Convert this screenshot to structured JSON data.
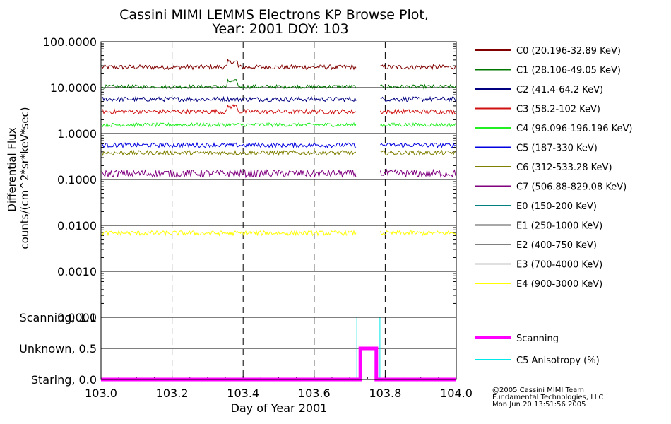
{
  "title_line1": "Cassini MIMI LEMMS Electrons KP Browse Plot,",
  "title_line2": "Year: 2001 DOY: 103",
  "ylabel_line1": "Differential Flux",
  "ylabel_line2": "counts/(cm^2*sr*keV*sec)",
  "xlabel": "Day of Year 2001",
  "credits": [
    "@2005 Cassini MIMI Team",
    "Fundamental Technologies, LLC",
    "Mon Jun 20 13:51:56 2005"
  ],
  "chart_data": [
    {
      "type": "line",
      "title": "Cassini MIMI LEMMS Electrons KP Browse Plot, Year: 2001 DOY: 103",
      "xlabel": "Day of Year 2001",
      "ylabel": "Differential Flux counts/(cm^2*sr*keV*sec)",
      "yscale": "log",
      "xlim": [
        103.0,
        104.0
      ],
      "ylim": [
        0.0001,
        100.0
      ],
      "y_ticks": [
        "100.0000",
        "10.0000",
        "1.0000",
        "0.1000",
        "0.0100",
        "0.0010",
        "0.0001"
      ],
      "x_vertical_dashed_lines": [
        103.2,
        103.4,
        103.6,
        103.8
      ],
      "data_gap": [
        103.72,
        103.785
      ],
      "legend_position": "right",
      "series": [
        {
          "name": "C0 (20.196-32.89 KeV)",
          "color": "#800000",
          "level": 28.0,
          "noise": 0.05,
          "feature": "bump near 103.36-103.38"
        },
        {
          "name": "C1 (28.106-49.05 KeV)",
          "color": "#007800",
          "level": 10.5,
          "noise": 0.04,
          "feature": "bump near 103.36-103.38"
        },
        {
          "name": "C2 (41.4-64.2 KeV)",
          "color": "#000080",
          "level": 5.6,
          "noise": 0.05,
          "feature": ""
        },
        {
          "name": "C3 (58.2-102 KeV)",
          "color": "#d01010",
          "level": 3.0,
          "noise": 0.05,
          "feature": "bump near 103.36-103.38"
        },
        {
          "name": "C4 (96.096-196.196 KeV)",
          "color": "#22ee22",
          "level": 1.55,
          "noise": 0.04,
          "feature": ""
        },
        {
          "name": "C5 (187-330 KeV)",
          "color": "#0000e0",
          "level": 0.56,
          "noise": 0.05,
          "feature": ""
        },
        {
          "name": "C6 (312-533.28 KeV)",
          "color": "#808000",
          "level": 0.38,
          "noise": 0.05,
          "feature": ""
        },
        {
          "name": "C7 (506.88-829.08 KeV)",
          "color": "#800080",
          "level": 0.135,
          "noise": 0.08,
          "feature": ""
        },
        {
          "name": "E0 (150-200 KeV)",
          "color": "#008080",
          "level": null
        },
        {
          "name": "E1 (250-1000 KeV)",
          "color": "#505050",
          "level": null
        },
        {
          "name": "E2 (400-750 KeV)",
          "color": "#808080",
          "level": null
        },
        {
          "name": "E3 (700-4000 KeV)",
          "color": "#c0c0c0",
          "level": null
        },
        {
          "name": "E4 (900-3000 KeV)",
          "color": "#ffff00",
          "level": 0.0068,
          "noise": 0.05,
          "feature": ""
        }
      ]
    },
    {
      "type": "line",
      "xlim": [
        103.0,
        104.0
      ],
      "ylim": [
        0.0,
        1.0
      ],
      "y_tick_labels": [
        {
          "label": "Scanning, 1.0",
          "value": 1.0
        },
        {
          "label": "Unknown, 0.5",
          "value": 0.5
        },
        {
          "label": "Staring, 0.0",
          "value": 0.0
        }
      ],
      "x_ticks": [
        "103.0",
        "103.2",
        "103.4",
        "103.6",
        "103.8",
        "104.0"
      ],
      "x_vertical_dashed_lines": [
        103.2,
        103.4,
        103.6,
        103.8
      ],
      "series": [
        {
          "name": "Scanning",
          "color": "#ff00ff",
          "x": [
            103.0,
            103.725,
            103.725,
            103.73,
            103.73,
            103.775,
            103.775,
            103.78,
            103.78,
            104.0
          ],
          "y": [
            0.0,
            0.0,
            0.0,
            0.0,
            0.5,
            0.5,
            0.0,
            0.0,
            0.0,
            0.0
          ]
        },
        {
          "name": "C5 Anisotropy (%)",
          "color": "#00e8e8",
          "x": [
            103.0,
            103.72,
            103.72,
            103.785,
            103.785,
            104.0
          ],
          "y": [
            1.0,
            1.0,
            0.0,
            0.0,
            1.0,
            1.0
          ]
        }
      ],
      "legend_position": "right"
    }
  ]
}
